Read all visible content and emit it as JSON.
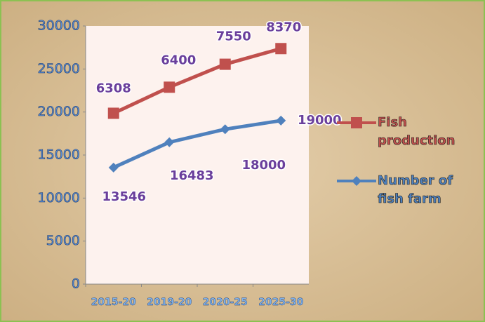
{
  "chart_data": {
    "type": "line",
    "stacked": true,
    "categories": [
      "2015-20",
      "2019-20",
      "2020-25",
      "2025-30"
    ],
    "series": [
      {
        "name": "Fish production",
        "color": "#c0504d",
        "marker": "square",
        "values": [
          6308,
          6400,
          7550,
          8370
        ]
      },
      {
        "name": "Number of fish farm",
        "color": "#4f81bd",
        "marker": "diamond",
        "values": [
          13546,
          16483,
          18000,
          19000
        ]
      }
    ],
    "ylim": [
      0,
      30000
    ],
    "yticks": [
      0,
      5000,
      10000,
      15000,
      20000,
      25000,
      30000
    ],
    "legend": "right"
  }
}
